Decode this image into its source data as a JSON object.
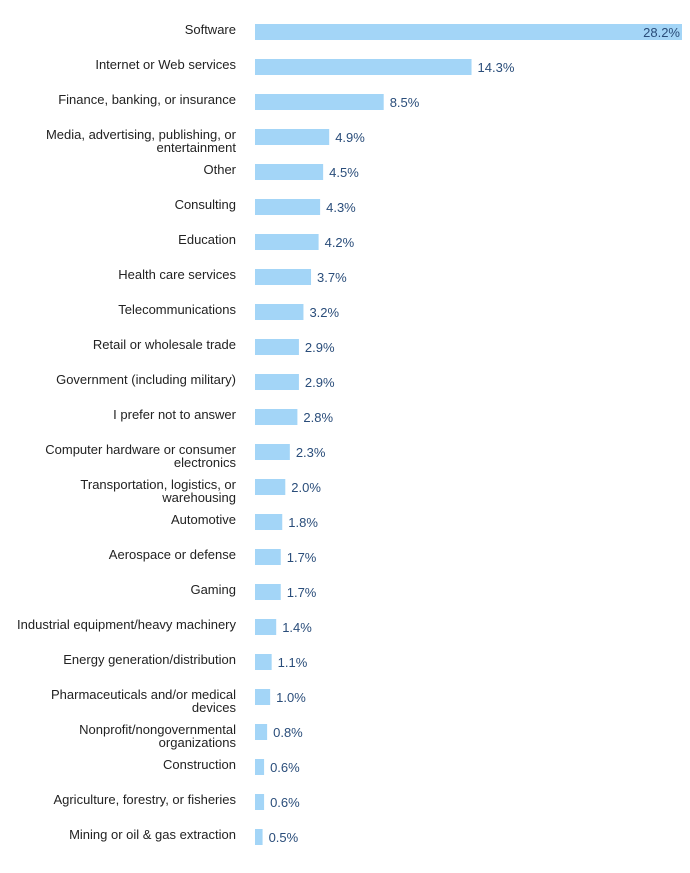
{
  "chart_data": {
    "type": "bar",
    "orientation": "horizontal",
    "title": "",
    "xlabel": "",
    "ylabel": "",
    "bar_color": "#a3d5f7",
    "value_label_color": "#2a4d7a",
    "category_label_color": "#222222",
    "value_suffix": "%",
    "xlim": [
      0,
      28.2
    ],
    "grid": false,
    "legend": "none",
    "categories": [
      [
        "Software"
      ],
      [
        "Internet or Web services"
      ],
      [
        "Finance, banking, or insurance"
      ],
      [
        "Media, advertising, publishing, or",
        "entertainment"
      ],
      [
        "Other"
      ],
      [
        "Consulting"
      ],
      [
        "Education"
      ],
      [
        "Health care services"
      ],
      [
        "Telecommunications"
      ],
      [
        "Retail or wholesale trade"
      ],
      [
        "Government (including military)"
      ],
      [
        "I prefer not to answer"
      ],
      [
        "Computer hardware or consumer",
        "electronics"
      ],
      [
        "Transportation, logistics, or",
        "warehousing"
      ],
      [
        "Automotive"
      ],
      [
        "Aerospace or defense"
      ],
      [
        "Gaming"
      ],
      [
        "Industrial equipment/heavy machinery"
      ],
      [
        "Energy generation/distribution"
      ],
      [
        "Pharmaceuticals and/or medical",
        "devices"
      ],
      [
        "Nonprofit/nongovernmental",
        "organizations"
      ],
      [
        "Construction"
      ],
      [
        "Agriculture, forestry, or fisheries"
      ],
      [
        "Mining or oil & gas extraction"
      ]
    ],
    "values": [
      28.2,
      14.3,
      8.5,
      4.9,
      4.5,
      4.3,
      4.2,
      3.7,
      3.2,
      2.9,
      2.9,
      2.8,
      2.3,
      2.0,
      1.8,
      1.7,
      1.7,
      1.4,
      1.1,
      1.0,
      0.8,
      0.6,
      0.6,
      0.5
    ],
    "value_labels": [
      "28.2%",
      "14.3%",
      "8.5%",
      "4.9%",
      "4.5%",
      "4.3%",
      "4.2%",
      "3.7%",
      "3.2%",
      "2.9%",
      "2.9%",
      "2.8%",
      "2.3%",
      "2.0%",
      "1.8%",
      "1.7%",
      "1.7%",
      "1.4%",
      "1.1%",
      "1.0%",
      "0.8%",
      "0.6%",
      "0.6%",
      "0.5%"
    ]
  }
}
